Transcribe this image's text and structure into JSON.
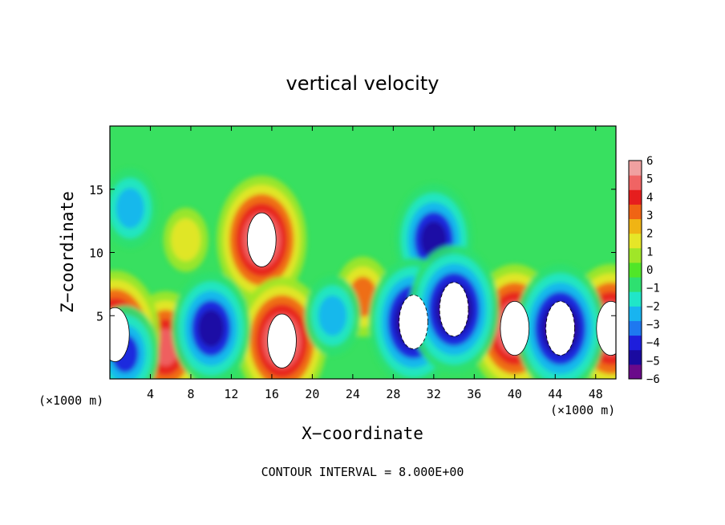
{
  "chart_data": {
    "type": "heatmap",
    "title": "vertical velocity",
    "xlabel": "X−coordinate",
    "ylabel": "Z−coordinate",
    "x_unit_left": "(×1000 m)",
    "x_unit_right": "(×1000 m)",
    "footer": "CONTOUR INTERVAL = 8.000E+00",
    "xlim": [
      0,
      50
    ],
    "ylim": [
      0,
      20
    ],
    "x_ticks": [
      4,
      8,
      12,
      16,
      20,
      24,
      28,
      32,
      36,
      40,
      44,
      48
    ],
    "y_ticks": [
      5,
      10,
      15
    ],
    "colorbar": {
      "labels": [
        "6",
        "5",
        "4",
        "3",
        "2",
        "1",
        "0",
        "−1",
        "−2",
        "−3",
        "−4",
        "−5",
        "−6"
      ],
      "range": [
        -6,
        6
      ],
      "colors": [
        "#6a0a8a",
        "#1a0aa0",
        "#1e1edc",
        "#1e78f0",
        "#18b4f0",
        "#20e6c8",
        "#2ee070",
        "#50e628",
        "#a0e628",
        "#e6e628",
        "#f0b414",
        "#f06414",
        "#e61e1e",
        "#f06464",
        "#f0a0a0"
      ]
    },
    "features": [
      {
        "kind": "updraft",
        "x": 15,
        "z": 11,
        "value": 6
      },
      {
        "kind": "updraft",
        "x": 17,
        "z": 3,
        "value": 6
      },
      {
        "kind": "updraft",
        "x": 5.5,
        "z": 2.5,
        "value": 5
      },
      {
        "kind": "updraft",
        "x": 40,
        "z": 4,
        "value": 6
      },
      {
        "kind": "updraft",
        "x": 0.5,
        "z": 3.5,
        "value": 6
      },
      {
        "kind": "updraft",
        "x": 49.5,
        "z": 4,
        "value": 6
      },
      {
        "kind": "updraft",
        "x": 25,
        "z": 6.5,
        "value": 3
      },
      {
        "kind": "updraft",
        "x": 7.5,
        "z": 11,
        "value": 2
      },
      {
        "kind": "downdraft",
        "x": 32,
        "z": 11,
        "value": -5
      },
      {
        "kind": "downdraft",
        "x": 30,
        "z": 4.5,
        "value": -6
      },
      {
        "kind": "downdraft",
        "x": 34,
        "z": 5.5,
        "value": -6
      },
      {
        "kind": "downdraft",
        "x": 44.5,
        "z": 4,
        "value": -6
      },
      {
        "kind": "downdraft",
        "x": 10,
        "z": 4,
        "value": -5
      },
      {
        "kind": "downdraft",
        "x": 2,
        "z": 13.5,
        "value": -3
      },
      {
        "kind": "downdraft",
        "x": 22,
        "z": 5,
        "value": -3
      },
      {
        "kind": "downdraft",
        "x": 1.5,
        "z": 2,
        "value": -4
      }
    ]
  }
}
